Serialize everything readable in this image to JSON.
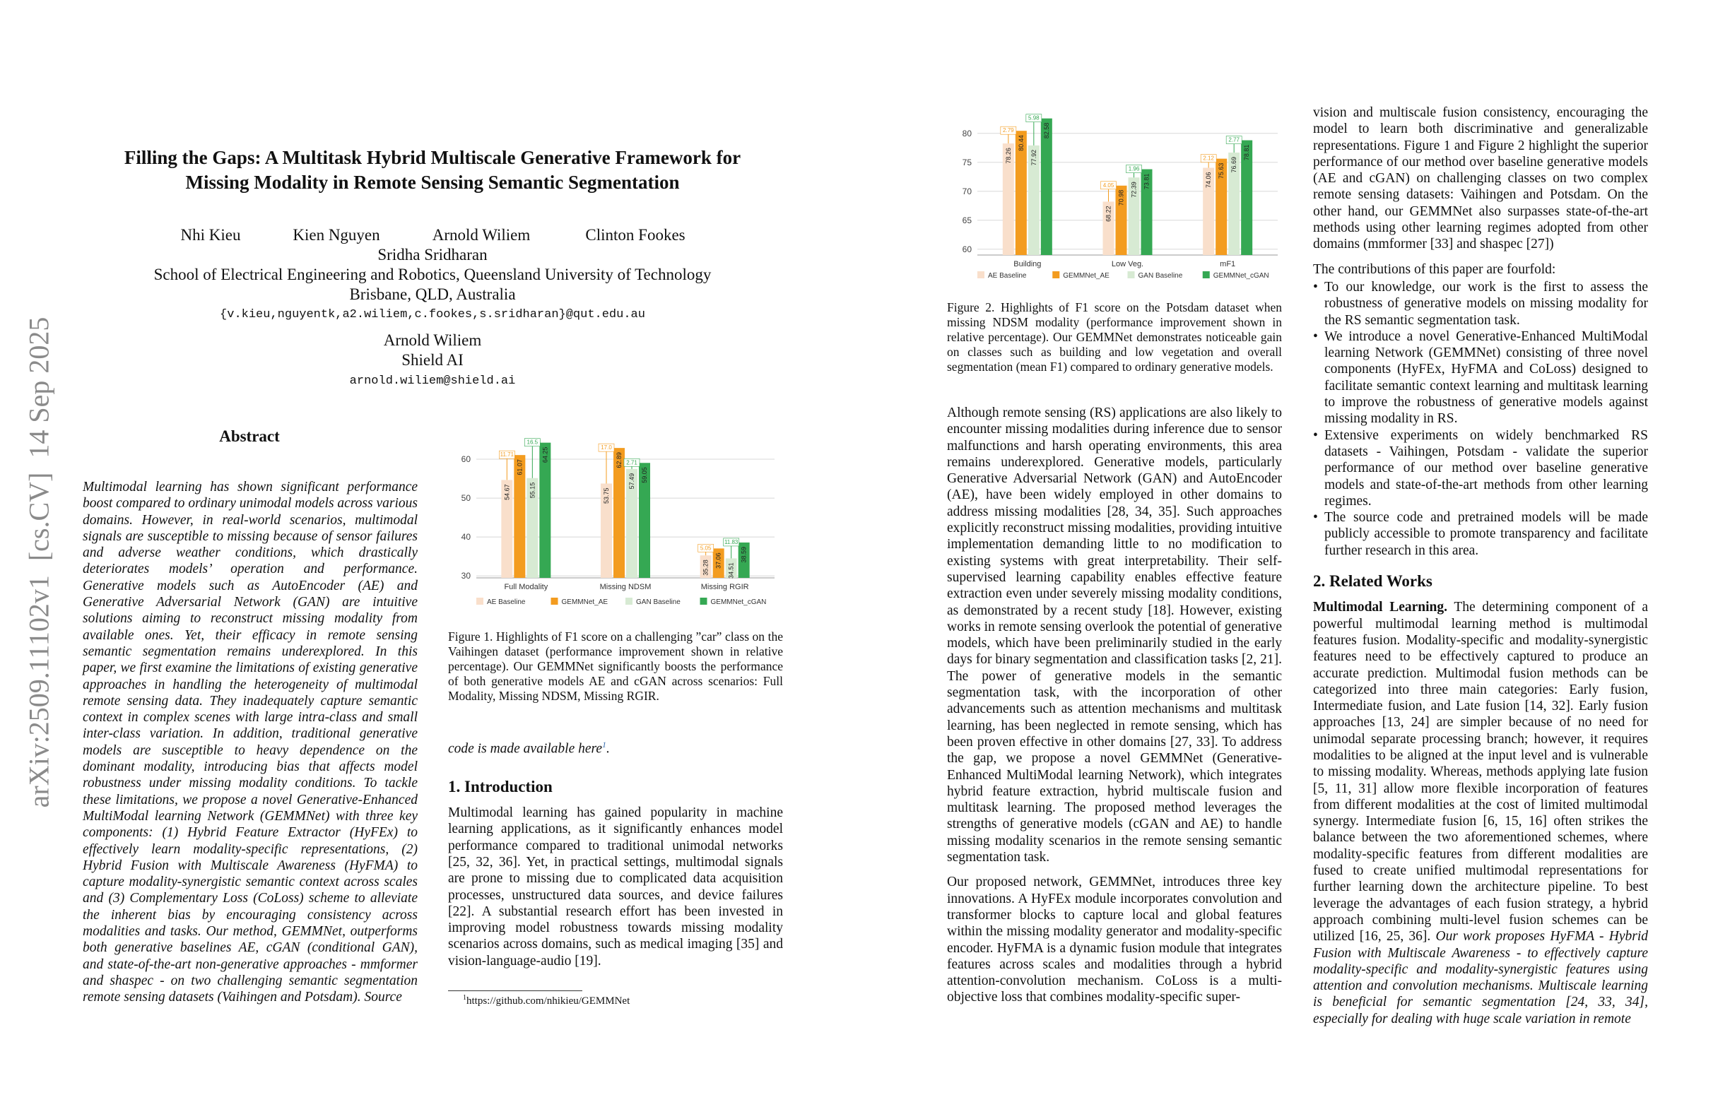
{
  "arxiv_id": "arXiv:2509.11102v1  [cs.CV]  14 Sep 2025",
  "header": {
    "title": [
      "Filling the Gaps: A Multitask Hybrid Multiscale Generative Framework for",
      "Missing Modality in Remote Sensing Semantic Segmentation"
    ],
    "authors": [
      "Nhi Kieu",
      "Kien Nguyen",
      "Arnold Wiliem",
      "Clinton Fookes",
      "Sridha Sridharan"
    ],
    "affiliation": [
      "School of Electrical Engineering and Robotics, Queensland University of Technology",
      "Brisbane, QLD, Australia"
    ],
    "email": "{v.kieu,nguyentk,a2.wiliem,c.fookes,s.sridharan}@qut.edu.au",
    "second_author": "Arnold Wiliem",
    "second_affiliation": "Shield AI",
    "second_email": "arnold.wiliem@shield.ai"
  },
  "abstract": {
    "heading": "Abstract",
    "text": "Multimodal learning has shown significant performance boost compared to ordinary unimodal models across various domains. However, in real-world scenarios, multimodal signals are susceptible to missing because of sensor failures and adverse weather conditions, which drastically deteriorates models’ operation and performance. Generative models such as AutoEncoder (AE) and Generative Adversarial Network (GAN) are intuitive solutions aiming to reconstruct missing modality from available ones. Yet, their efficacy in remote sensing semantic segmentation remains underexplored. In this paper, we first examine the limitations of existing generative approaches in handling the heterogeneity of multimodal remote sensing data. They inadequately capture semantic context in complex scenes with large intra-class and small inter-class variation. In addition, traditional generative models are susceptible to heavy dependence on the dominant modality, introducing bias that affects model robustness under missing modality conditions. To tackle these limitations, we propose a novel Generative-Enhanced MultiModal learning Network (GEMMNet) with three key components: (1) Hybrid Feature Extractor (HyFEx) to effectively learn modality-specific representations, (2) Hybrid Fusion with Multiscale Awareness (HyFMA) to capture modality-synergistic semantic context across scales and (3) Complementary Loss (CoLoss) scheme to alleviate the inherent bias by encouraging consistency across modalities and tasks. Our method, GEMMNet, outperforms both generative baselines AE, cGAN (conditional GAN), and state-of-the-art non-generative approaches - mmformer and shaspec - on two challenging semantic segmentation remote sensing datasets (Vaihingen and Potsdam). Source",
    "tail": [
      "code is made available here",
      "1",
      "."
    ]
  },
  "chart_data": [
    {
      "type": "bar",
      "categories": [
        "Full Modality",
        "Missing NDSM",
        "Missing RGIR"
      ],
      "series": [
        {
          "name": "AE Baseline",
          "color": "#f9dfcb",
          "values": [
            54.67,
            53.75,
            35.28
          ]
        },
        {
          "name": "GEMMNet_AE",
          "color": "#f39c1f",
          "values": [
            61.07,
            62.89,
            37.06
          ],
          "gains": [
            11.71,
            17,
            5.05
          ],
          "gain_labels": [
            "11.71",
            "17.0",
            "5.05"
          ]
        },
        {
          "name": "GAN Baseline",
          "color": "#d7ead3",
          "values": [
            55.15,
            57.49,
            34.51
          ]
        },
        {
          "name": "GEMMNet_cGAN",
          "color": "#35a853",
          "values": [
            64.25,
            59.05,
            38.59
          ],
          "gains": [
            16.5,
            2.71,
            11.83
          ],
          "gain_labels": [
            "16.5",
            "2.71",
            "11.83"
          ]
        }
      ],
      "ylim": [
        29.5,
        66
      ],
      "yticks": [
        30,
        40,
        50,
        60
      ],
      "grid": true,
      "legend": "bottom"
    },
    {
      "type": "bar",
      "categories": [
        "Building",
        "Low Veg.",
        "mF1"
      ],
      "series": [
        {
          "name": "AE Baseline",
          "color": "#f9dfcb",
          "values": [
            78.26,
            68.22,
            74.06
          ]
        },
        {
          "name": "GEMMNet_AE",
          "color": "#f39c1f",
          "values": [
            80.44,
            70.98,
            75.63
          ],
          "gains": [
            2.79,
            4.05,
            2.12
          ],
          "gain_labels": [
            "2.79",
            "4.05",
            "2.12"
          ]
        },
        {
          "name": "GAN Baseline",
          "color": "#d7ead3",
          "values": [
            77.92,
            72.39,
            76.69
          ]
        },
        {
          "name": "GEMMNet_cGAN",
          "color": "#35a853",
          "values": [
            82.58,
            73.81,
            78.81
          ],
          "gains": [
            5.98,
            1.96,
            2.77
          ],
          "gain_labels": [
            "5.98",
            "1.96",
            "2.77"
          ]
        }
      ],
      "ylim": [
        59,
        84
      ],
      "yticks": [
        60,
        65,
        70,
        75,
        80
      ],
      "grid": true,
      "legend": "bottom"
    }
  ],
  "figure1_caption": "Figure 1. Highlights of F1 score on a challenging ”car” class on the Vaihingen dataset (performance improvement shown in relative percentage). Our GEMMNet significantly boosts the performance of both generative models AE and cGAN across scenarios: Full Modality, Missing NDSM, Missing RGIR.",
  "introduction": {
    "heading": "1. Introduction",
    "text": "Multimodal learning has gained popularity in machine learning applications, as it significantly enhances model performance compared to traditional unimodal networks [25, 32, 36]. Yet, in practical settings, multimodal signals are prone to missing due to complicated data acquisition processes, unstructured data sources, and device failures [22]. A substantial research effort has been invested in improving model robustness towards missing modality scenarios across domains, such as medical imaging [35] and vision-language-audio [19]."
  },
  "footnote": {
    "mark": "1",
    "text": "https://github.com/nhikieu/GEMMNet"
  },
  "figure2_caption": "Figure 2. Highlights of F1 score on the Potsdam dataset when missing NDSM modality (performance improvement shown in relative percentage). Our GEMMNet demonstrates noticeable gain on classes such as building and low vegetation and overall segmentation (mean F1) compared to ordinary generative models.",
  "intro_continued": [
    "Although remote sensing (RS) applications are also likely to encounter missing modalities during inference due to sensor malfunctions and harsh operating environments, this area remains underexplored. Generative models, particularly Generative Adversarial Network (GAN) and AutoEncoder (AE), have been widely employed in other domains to address missing modalities [28, 34, 35]. Such approaches explicitly reconstruct missing modalities, providing intuitive implementation demanding little to no modification to existing systems with great interpretability. Their self-supervised learning capability enables effective feature extraction even under severely missing modality conditions, as demonstrated by a recent study [18]. However, existing works in remote sensing overlook the potential of generative models, which have been preliminarily studied in the early days for binary segmentation and classification tasks [2, 21]. The power of generative models in the semantic segmentation task, with the incorporation of other advancements such as attention mechanisms and multitask learning, has been neglected in remote sensing, which has been proven effective in other domains [27, 33]. To address the gap, we propose a novel GEMMNet (Generative-Enhanced MultiModal learning Network), which integrates hybrid feature extraction, hybrid multiscale fusion and multitask learning. The proposed method leverages the strengths of generative models (cGAN and AE) to handle missing modality scenarios in the remote sensing semantic segmentation task.",
    "Our proposed network, GEMMNet, introduces three key innovations. A HyFEx module incorporates convolution and transformer blocks to capture local and global features within the missing modality generator and modality-specific encoder. HyFMA is a dynamic fusion module that integrates features across scales and modalities through a hybrid attention-convolution mechanism. CoLoss is a multi-objective loss that combines modality-specific super-",
    "vision and multiscale fusion consistency, encouraging the model to learn both discriminative and generalizable representations. Figure 1 and Figure 2 highlight the superior performance of our method over baseline generative models (AE and cGAN) on challenging classes on two complex remote sensing datasets: Vaihingen and Potsdam. On the other hand, our GEMMNet also surpasses state-of-the-art methods using other learning regimes adopted from other domains (mmformer [33] and shaspec [27])"
  ],
  "contributions": {
    "lead": "The contributions of this paper are fourfold:",
    "items": [
      "To our knowledge, our work is the first to assess the robustness of generative models on missing modality for the RS semantic segmentation task.",
      "We introduce a novel Generative-Enhanced MultiModal learning Network (GEMMNet) consisting of three novel components (HyFEx, HyFMA and CoLoss) designed to facilitate semantic context learning and multitask learning to improve the robustness of generative models against missing modality in RS.",
      "Extensive experiments on widely benchmarked RS datasets - Vaihingen, Potsdam - validate the superior performance of our method over baseline generative models and state-of-the-art methods from other learning regimes.",
      "The source code and pretrained models will be made publicly accessible to promote transparency and facilitate further research in this area."
    ]
  },
  "related": {
    "heading": "2. Related Works",
    "run_in": "Multimodal Learning.",
    "text": "The determining component of a powerful multimodal learning method is multimodal features fusion. Modality-specific and modality-synergistic features need to be effectively captured to produce an accurate prediction. Multimodal fusion methods can be categorized into three main categories: Early fusion, Intermediate fusion, and Late fusion [14, 32]. Early fusion approaches [13, 24] are simpler because of no need for unimodal separate processing branch; however, it requires modalities to be aligned at the input level and is vulnerable to missing modality. Whereas, methods applying late fusion [5, 11, 31] allow more flexible incorporation of features from different modalities at the cost of limited multimodal synergy. Intermediate fusion [6, 15, 16] often strikes the balance between the two aforementioned schemes, where modality-specific features from different modalities are fused to create unified multimodal representations for further learning down the architecture pipeline. To best leverage the advantages of each fusion strategy, a hybrid approach combining multi-level fusion schemes can be utilized [16, 25, 36].",
    "italic": "Our work proposes HyFMA - Hybrid Fusion with Multiscale Awareness - to effectively capture modality-specific and modality-synergistic features using attention and convolution mechanisms. Multiscale learning is beneficial for semantic segmentation [24, 33, 34], especially for dealing with huge scale variation in remote"
  }
}
